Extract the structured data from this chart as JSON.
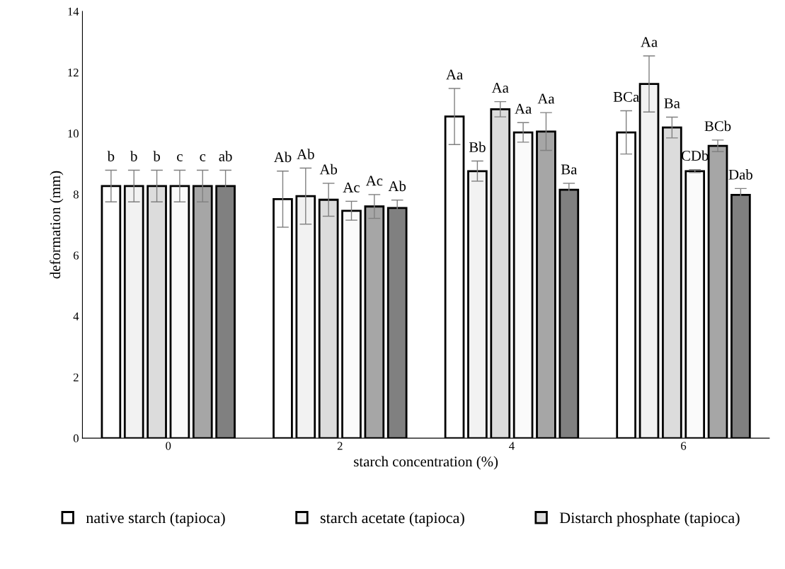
{
  "chart_data": {
    "type": "bar",
    "xlabel": "starch concentration (%)",
    "ylabel": "deformation (mm)",
    "categories": [
      "0",
      "2",
      "4",
      "6"
    ],
    "ylim": [
      0,
      14
    ],
    "yticks": [
      0,
      2,
      4,
      6,
      8,
      10,
      12,
      14
    ],
    "grid": false,
    "legend": "bottom",
    "series": [
      {
        "name": "native starch (tapioca)",
        "color": "#ffffff",
        "values": [
          8.27,
          7.84,
          10.55,
          10.03
        ],
        "errors": [
          0.52,
          0.92,
          0.92,
          0.71
        ],
        "value_labels": [
          "b",
          "Ab",
          "Aa",
          "BCa"
        ]
      },
      {
        "name": "starch acetate (tapioca)",
        "color": "#f2f2f2",
        "values": [
          8.27,
          7.94,
          8.76,
          11.62
        ],
        "errors": [
          0.52,
          0.92,
          0.33,
          0.92
        ],
        "value_labels": [
          "b",
          "Ab",
          "Bb",
          "Aa"
        ]
      },
      {
        "name": "Distarch phosphate (tapioca)",
        "color": "#dcdcdc",
        "values": [
          8.27,
          7.82,
          10.79,
          10.19
        ],
        "errors": [
          0.52,
          0.54,
          0.25,
          0.34
        ],
        "value_labels": [
          "b",
          "Ab",
          "Aa",
          "Ba"
        ]
      },
      {
        "color": "#fafafa",
        "values": [
          8.27,
          7.46,
          10.03,
          8.76
        ],
        "errors": [
          0.52,
          0.31,
          0.32,
          0.05
        ],
        "value_labels": [
          "c",
          "Ac",
          "Aa",
          "CDb"
        ]
      },
      {
        "color": "#a6a6a6",
        "values": [
          8.27,
          7.6,
          10.06,
          9.59
        ],
        "errors": [
          0.52,
          0.39,
          0.62,
          0.19
        ],
        "value_labels": [
          "c",
          "Ac",
          "Aa",
          "BCb"
        ]
      },
      {
        "color": "#808080",
        "values": [
          8.27,
          7.55,
          8.15,
          7.98
        ],
        "errors": [
          0.52,
          0.26,
          0.21,
          0.21
        ],
        "value_labels": [
          "ab",
          "Ab",
          "Ba",
          "Dab"
        ]
      }
    ]
  }
}
